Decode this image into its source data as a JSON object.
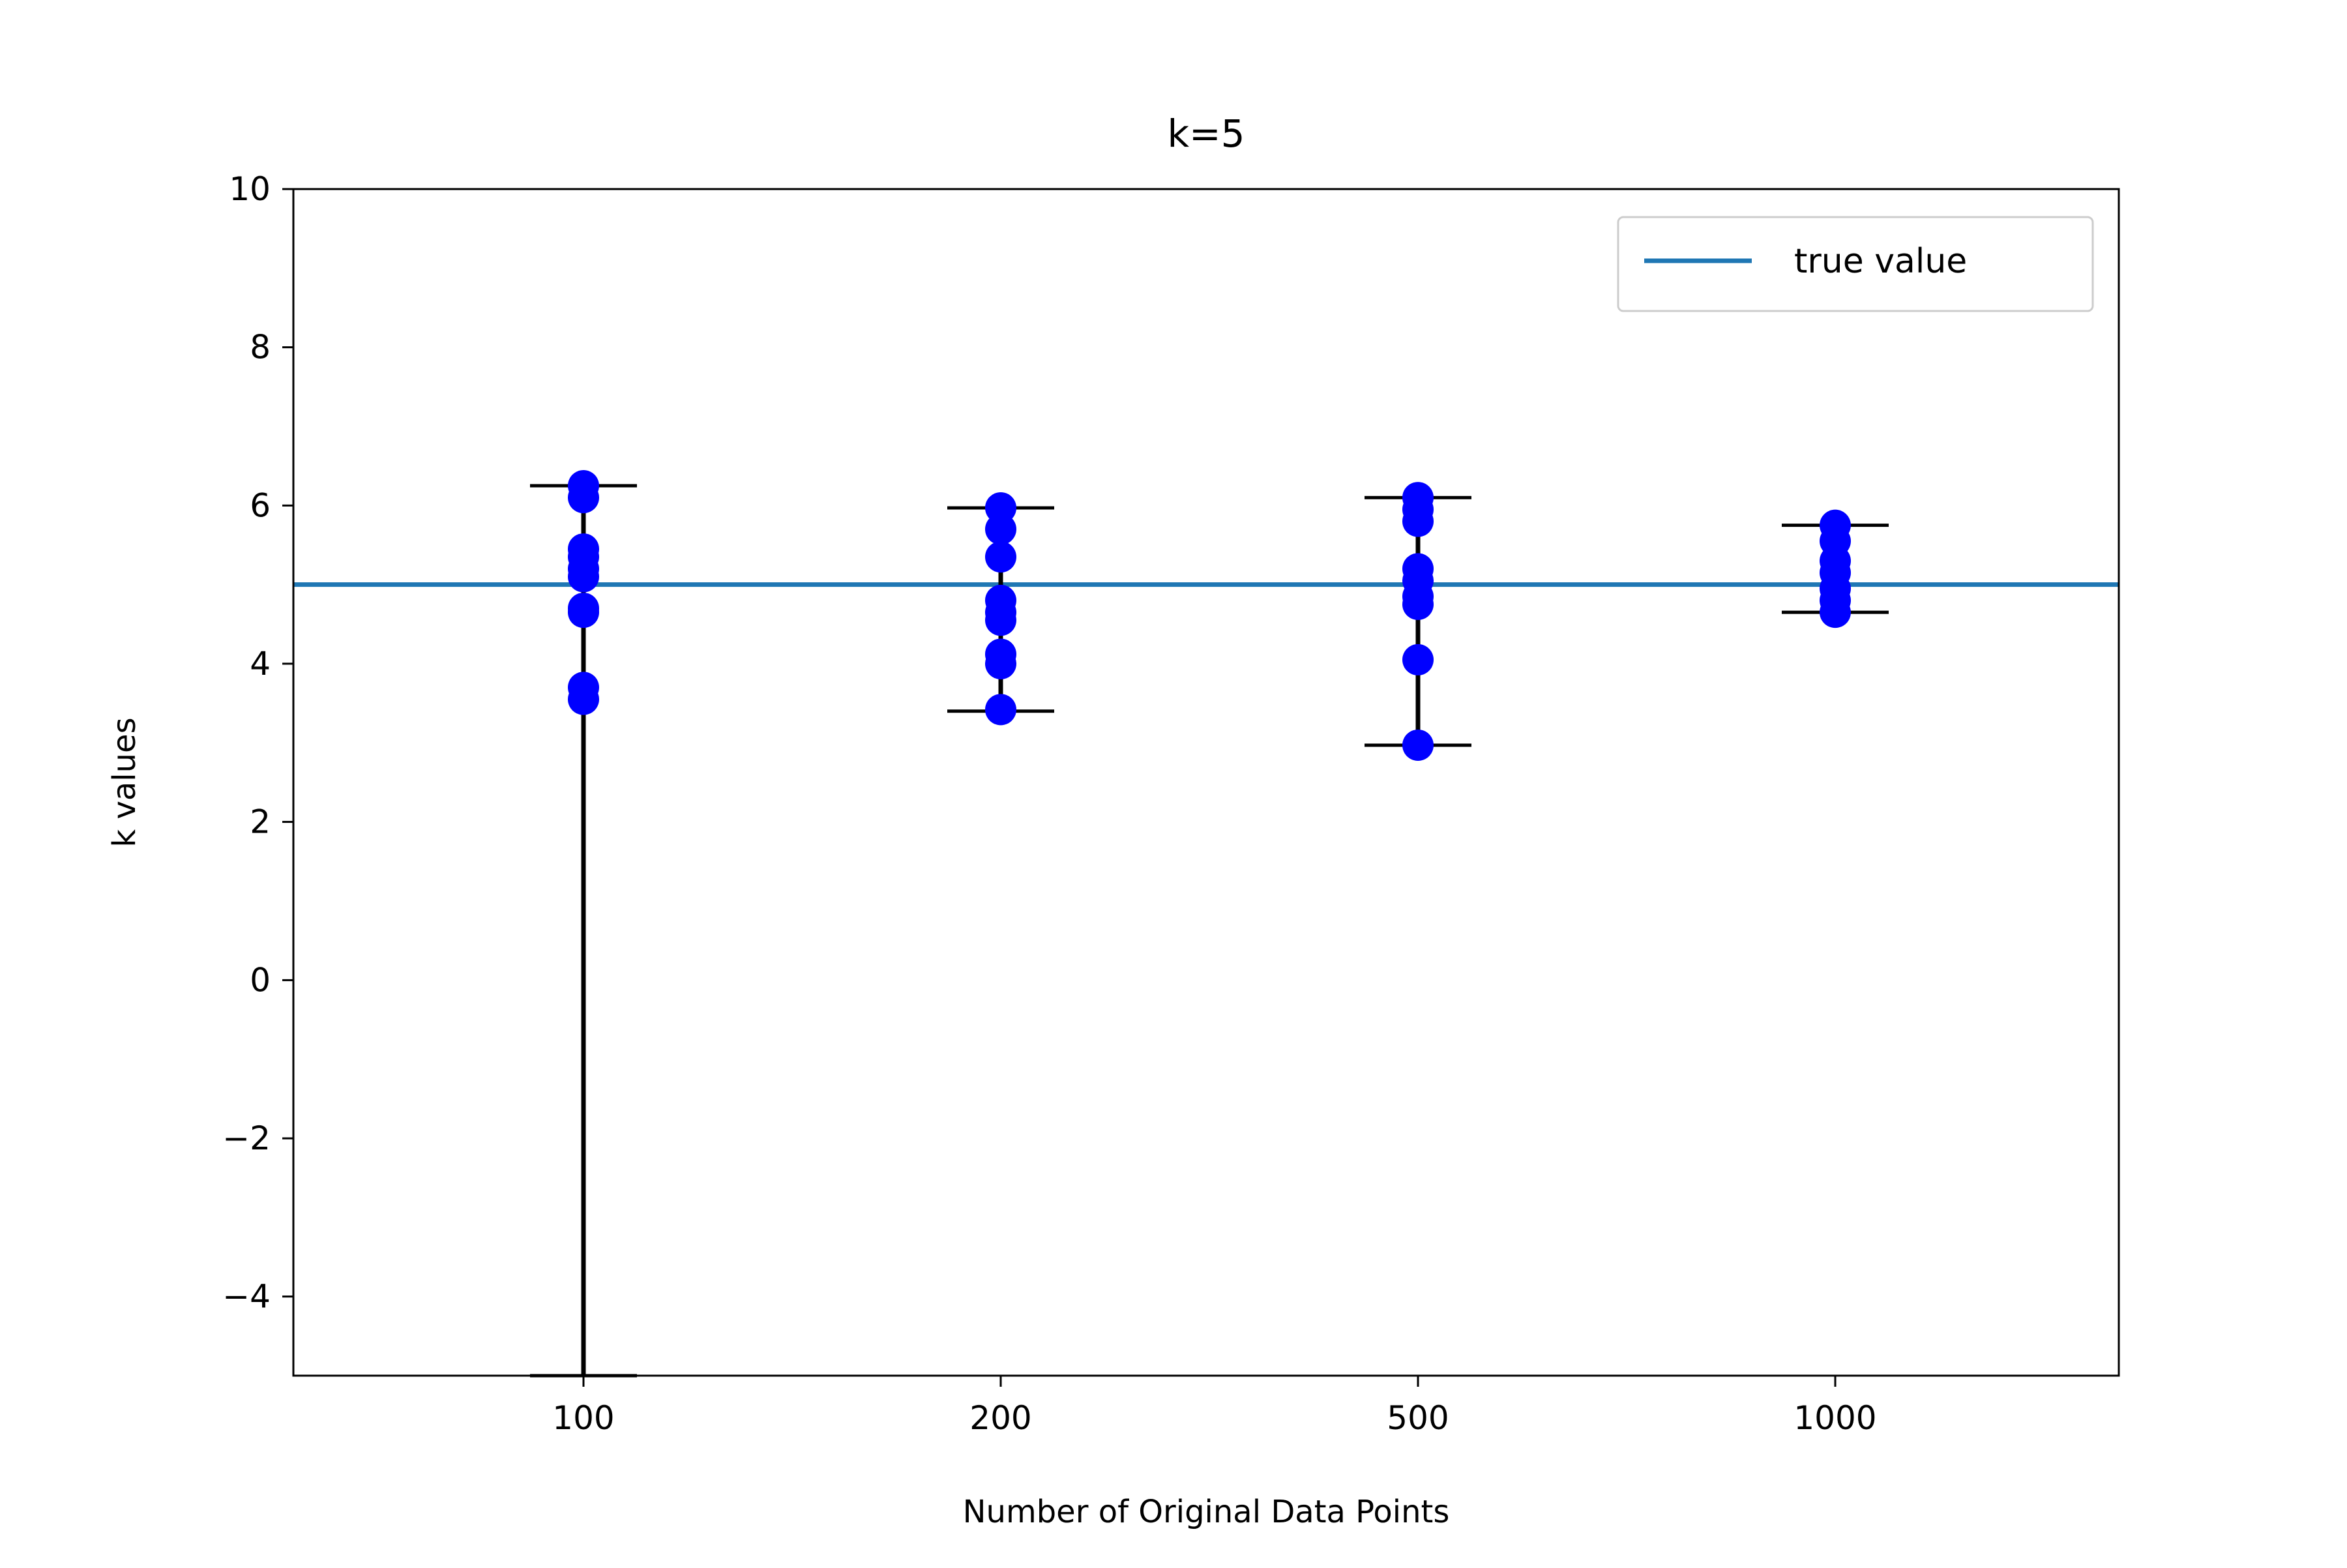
{
  "chart_data": {
    "type": "scatter",
    "title": "k=5",
    "xlabel": "Number of Original Data Points",
    "ylabel": "k values",
    "categories": [
      "100",
      "200",
      "500",
      "1000"
    ],
    "ylim": [
      -5,
      10
    ],
    "yticks": [
      10,
      8,
      6,
      4,
      2,
      0,
      -2,
      -4
    ],
    "ytick_labels": [
      "10",
      "8",
      "6",
      "4",
      "2",
      "0",
      "−2",
      "−4"
    ],
    "grid": false,
    "legend": {
      "placement": "top-right",
      "entries": [
        "true value"
      ]
    },
    "reference_line": {
      "name": "true value",
      "y": 5,
      "color": "#1f77b4"
    },
    "point_color": "#0000ff",
    "errorbar_color": "#000000",
    "groups": [
      {
        "category": "100",
        "points": [
          6.25,
          6.1,
          5.45,
          5.35,
          5.2,
          5.1,
          4.7,
          4.65,
          3.7,
          3.55
        ],
        "error_low": -5.0,
        "error_high": 6.25
      },
      {
        "category": "200",
        "points": [
          5.97,
          5.7,
          5.35,
          4.8,
          4.65,
          4.55,
          4.12,
          4.0,
          3.42
        ],
        "error_low": 3.4,
        "error_high": 5.97
      },
      {
        "category": "500",
        "points": [
          6.1,
          5.95,
          5.8,
          5.2,
          5.05,
          4.85,
          4.75,
          4.05,
          2.97
        ],
        "error_low": 2.97,
        "error_high": 6.1
      },
      {
        "category": "1000",
        "points": [
          5.75,
          5.55,
          5.3,
          5.15,
          4.95,
          4.8,
          4.65
        ],
        "error_low": 4.65,
        "error_high": 5.75
      }
    ]
  }
}
